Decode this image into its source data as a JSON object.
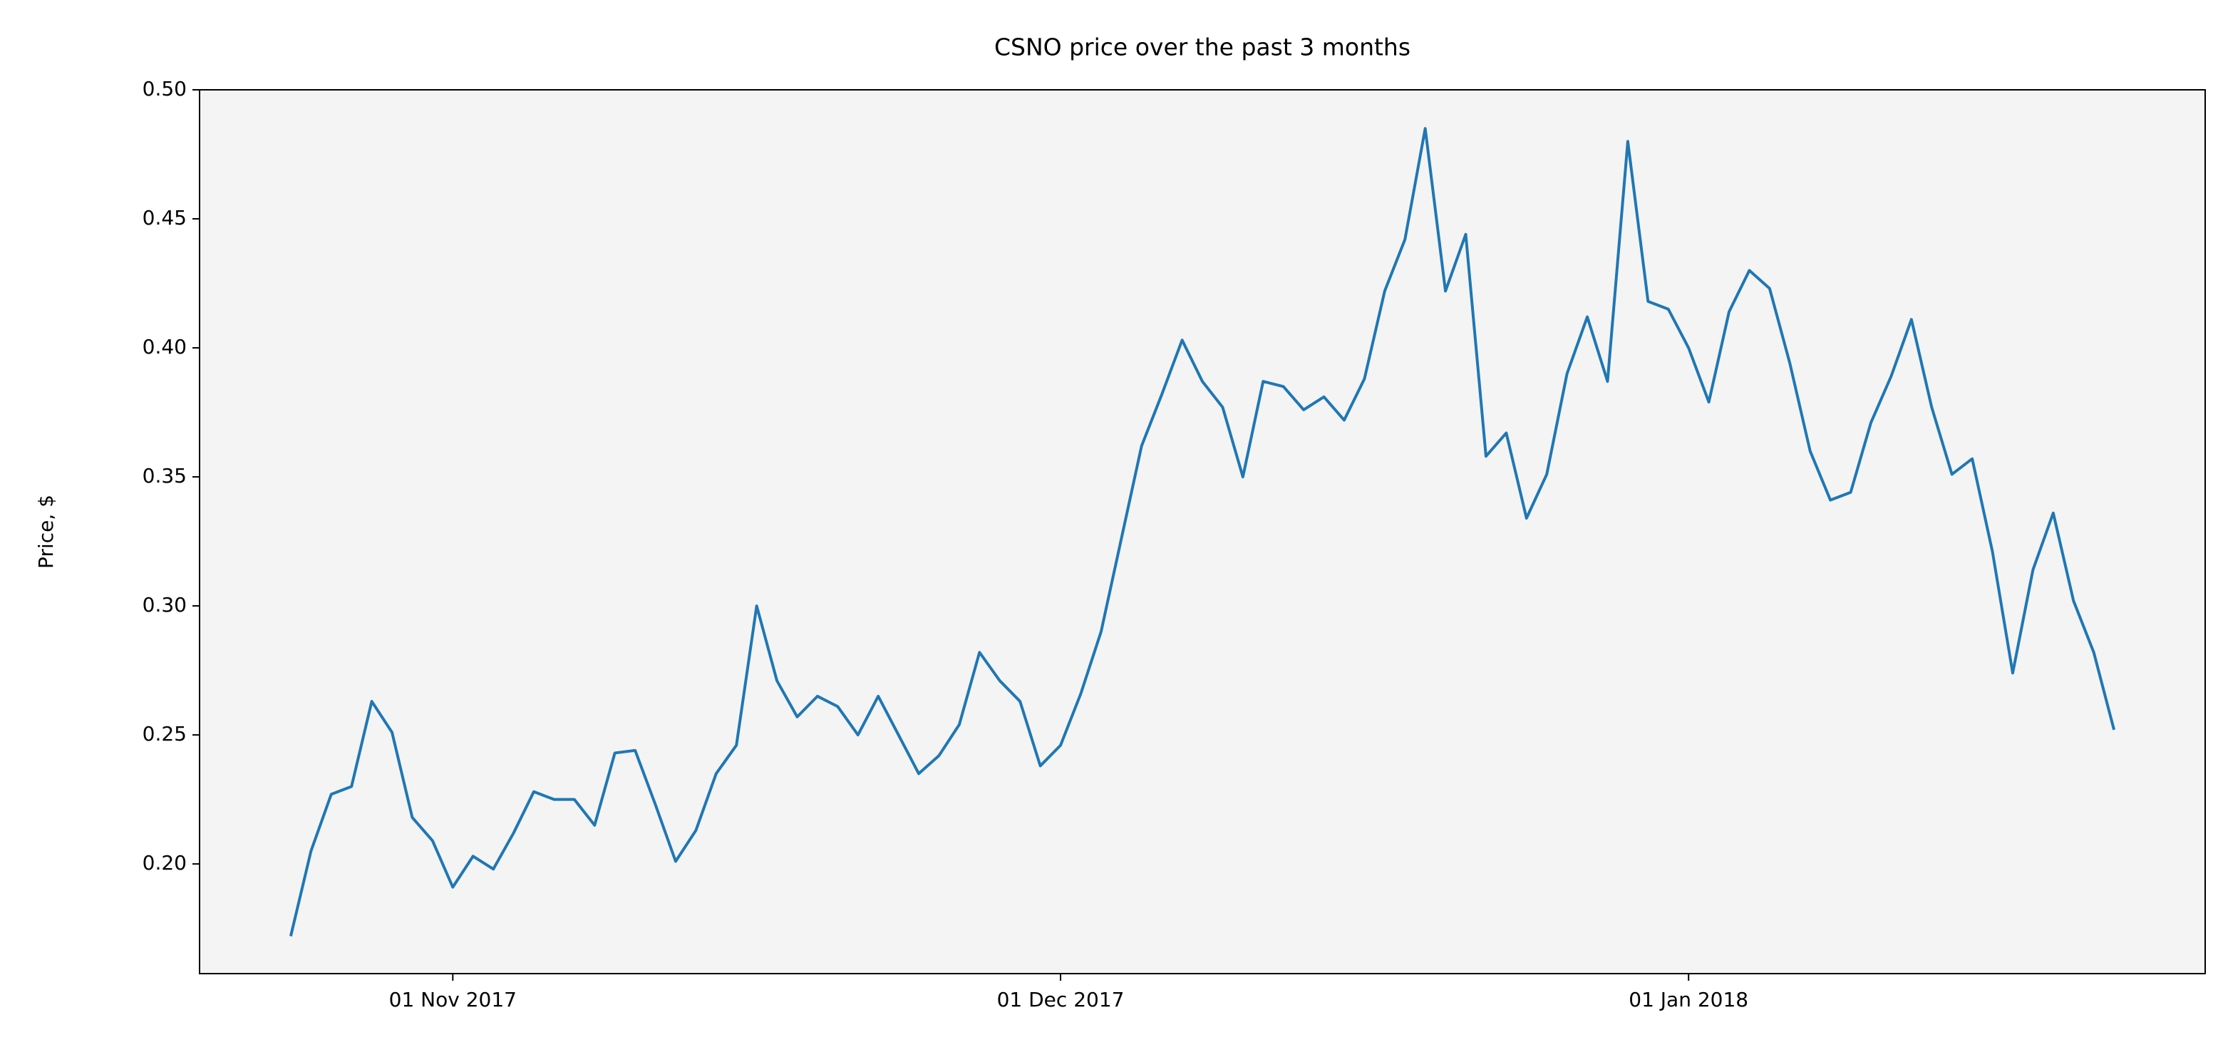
{
  "chart_data": {
    "type": "line",
    "title": "CSNO price over the past 3 months",
    "y_label": "Price, $",
    "x": [
      "2017-10-24",
      "2017-10-25",
      "2017-10-26",
      "2017-10-27",
      "2017-10-28",
      "2017-10-29",
      "2017-10-30",
      "2017-10-31",
      "2017-11-01",
      "2017-11-02",
      "2017-11-03",
      "2017-11-04",
      "2017-11-05",
      "2017-11-06",
      "2017-11-07",
      "2017-11-08",
      "2017-11-09",
      "2017-11-10",
      "2017-11-11",
      "2017-11-12",
      "2017-11-13",
      "2017-11-14",
      "2017-11-15",
      "2017-11-16",
      "2017-11-17",
      "2017-11-18",
      "2017-11-19",
      "2017-11-20",
      "2017-11-21",
      "2017-11-22",
      "2017-11-23",
      "2017-11-24",
      "2017-11-25",
      "2017-11-26",
      "2017-11-27",
      "2017-11-28",
      "2017-11-29",
      "2017-11-30",
      "2017-12-01",
      "2017-12-02",
      "2017-12-03",
      "2017-12-04",
      "2017-12-05",
      "2017-12-06",
      "2017-12-07",
      "2017-12-08",
      "2017-12-09",
      "2017-12-10",
      "2017-12-11",
      "2017-12-12",
      "2017-12-13",
      "2017-12-14",
      "2017-12-15",
      "2017-12-16",
      "2017-12-17",
      "2017-12-18",
      "2017-12-19",
      "2017-12-20",
      "2017-12-21",
      "2017-12-22",
      "2017-12-23",
      "2017-12-24",
      "2017-12-25",
      "2017-12-26",
      "2017-12-27",
      "2017-12-28",
      "2017-12-29",
      "2017-12-30",
      "2017-12-31",
      "2018-01-01",
      "2018-01-02",
      "2018-01-03",
      "2018-01-04",
      "2018-01-05",
      "2018-01-06",
      "2018-01-07",
      "2018-01-08",
      "2018-01-09",
      "2018-01-10",
      "2018-01-11",
      "2018-01-12",
      "2018-01-13",
      "2018-01-14",
      "2018-01-15",
      "2018-01-16",
      "2018-01-17",
      "2018-01-18",
      "2018-01-19",
      "2018-01-20",
      "2018-01-21",
      "2018-01-22"
    ],
    "series": [
      {
        "name": "CSNO",
        "color": "#1f77b4",
        "values": [
          0.172,
          0.205,
          0.227,
          0.23,
          0.263,
          0.251,
          0.218,
          0.209,
          0.191,
          0.203,
          0.198,
          0.212,
          0.228,
          0.225,
          0.225,
          0.215,
          0.243,
          0.244,
          0.223,
          0.201,
          0.213,
          0.235,
          0.246,
          0.3,
          0.271,
          0.257,
          0.265,
          0.261,
          0.25,
          0.265,
          0.25,
          0.235,
          0.242,
          0.254,
          0.282,
          0.271,
          0.263,
          0.238,
          0.246,
          0.266,
          0.29,
          0.326,
          0.362,
          0.382,
          0.403,
          0.387,
          0.377,
          0.35,
          0.387,
          0.385,
          0.376,
          0.381,
          0.372,
          0.388,
          0.422,
          0.442,
          0.485,
          0.422,
          0.444,
          0.358,
          0.367,
          0.334,
          0.351,
          0.39,
          0.412,
          0.387,
          0.48,
          0.418,
          0.415,
          0.4,
          0.379,
          0.414,
          0.43,
          0.423,
          0.394,
          0.36,
          0.341,
          0.344,
          0.371,
          0.389,
          0.411,
          0.377,
          0.351,
          0.357,
          0.321,
          0.274,
          0.314,
          0.336,
          0.302,
          0.282,
          0.252
        ]
      }
    ],
    "xlim": [
      "2017-10-19T12:00:00Z",
      "2018-01-26T12:00:00Z"
    ],
    "xticks": [
      {
        "value": "2017-11-01",
        "label": "01 Nov 2017"
      },
      {
        "value": "2017-12-01",
        "label": "01 Dec 2017"
      },
      {
        "value": "2018-01-01",
        "label": "01 Jan 2018"
      }
    ],
    "ylim": [
      0.1575,
      0.5
    ],
    "yticks": [
      {
        "value": 0.2,
        "label": "0.20"
      },
      0.25,
      {
        "value": 0.3,
        "label": "0.30"
      },
      0.35,
      {
        "value": 0.4,
        "label": "0.40"
      },
      0.45,
      {
        "value": 0.5,
        "label": "0.50"
      }
    ],
    "grid": false,
    "background": "#f4f4f4"
  }
}
